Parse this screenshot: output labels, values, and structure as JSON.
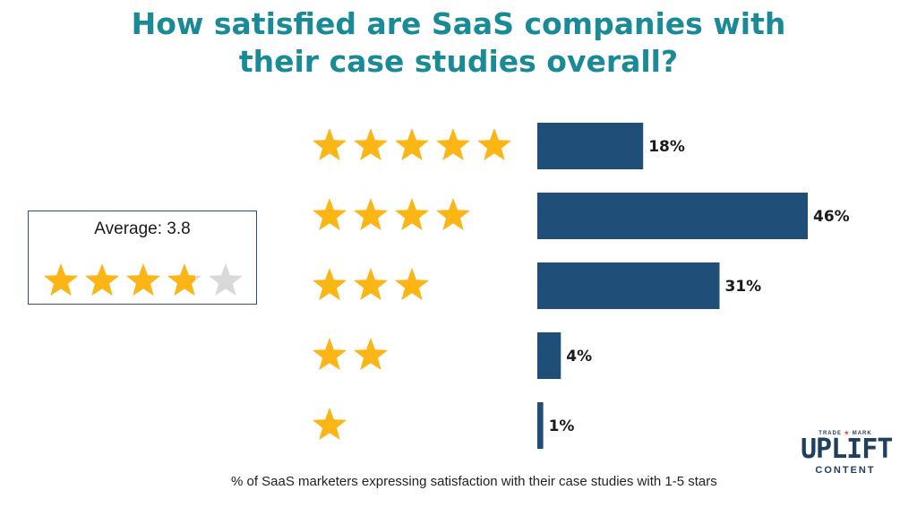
{
  "title": {
    "line1": "How satisfied are SaaS companies with",
    "line2": "their case studies overall?"
  },
  "average": {
    "label": "Average: 3.8",
    "value": 3.8,
    "max": 5
  },
  "caption": "% of SaaS marketers expressing satisfaction with their case studies with 1-5 stars",
  "logo": {
    "trademark_left": "TRADE",
    "trademark_right": "MARK",
    "name": "UPLIFT",
    "sub": "CONTENT"
  },
  "colors": {
    "title": "#1a8a96",
    "bar": "#1f4e79",
    "star": "#fbb615",
    "star_empty": "#d9d9d9"
  },
  "chart_data": {
    "type": "bar",
    "orientation": "horizontal",
    "categories": [
      "5 stars",
      "4 stars",
      "3 stars",
      "2 stars",
      "1 star"
    ],
    "star_counts": [
      5,
      4,
      3,
      2,
      1
    ],
    "values": [
      18,
      46,
      31,
      4,
      1
    ],
    "value_labels": [
      "18%",
      "46%",
      "31%",
      "4%",
      "1%"
    ],
    "unit": "%",
    "xlim": [
      0,
      46
    ],
    "grid": false,
    "legend": "none"
  }
}
